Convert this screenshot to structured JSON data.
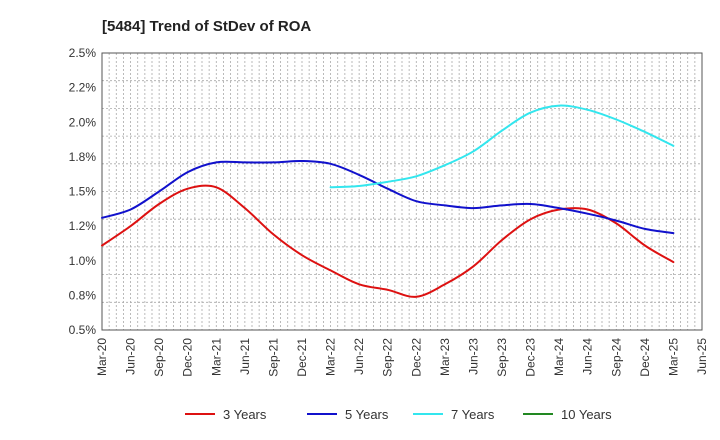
{
  "chart_data": {
    "type": "line",
    "title": "[5484]  Trend of StDev of ROA",
    "xlabel": "",
    "ylabel": "",
    "ylim": [
      0.5,
      2.5
    ],
    "y_ticks": [
      0.5,
      0.75,
      1.0,
      1.25,
      1.5,
      1.75,
      2.0,
      2.25,
      2.5
    ],
    "y_tick_labels": [
      "0.5%",
      "0.8%",
      "1.0%",
      "1.2%",
      "1.5%",
      "1.8%",
      "2.0%",
      "2.2%",
      "2.5%"
    ],
    "categories": [
      "Mar-20",
      "Jun-20",
      "Sep-20",
      "Dec-20",
      "Mar-21",
      "Jun-21",
      "Sep-21",
      "Dec-21",
      "Mar-22",
      "Jun-22",
      "Sep-22",
      "Dec-22",
      "Mar-23",
      "Jun-23",
      "Sep-23",
      "Dec-23",
      "Mar-24",
      "Jun-24",
      "Sep-24",
      "Dec-24",
      "Mar-25",
      "Jun-25"
    ],
    "grid": true,
    "legend_position": "bottom",
    "series": [
      {
        "name": "3 Years",
        "color": "#dd1111",
        "values": [
          1.11,
          1.25,
          1.41,
          1.52,
          1.53,
          1.38,
          1.19,
          1.04,
          0.93,
          0.83,
          0.79,
          0.74,
          0.83,
          0.96,
          1.15,
          1.3,
          1.37,
          1.37,
          1.27,
          1.11,
          0.99,
          null
        ]
      },
      {
        "name": "5 Years",
        "color": "#1111cc",
        "values": [
          1.31,
          1.37,
          1.5,
          1.64,
          1.71,
          1.71,
          1.71,
          1.72,
          1.7,
          1.62,
          1.52,
          1.43,
          1.4,
          1.38,
          1.4,
          1.41,
          1.38,
          1.34,
          1.29,
          1.23,
          1.2,
          null
        ]
      },
      {
        "name": "7 Years",
        "color": "#33e6ee",
        "values": [
          null,
          null,
          null,
          null,
          null,
          null,
          null,
          null,
          1.53,
          1.54,
          1.57,
          1.61,
          1.69,
          1.79,
          1.94,
          2.07,
          2.12,
          2.09,
          2.02,
          1.93,
          1.83,
          null
        ]
      },
      {
        "name": "10 Years",
        "color": "#228822",
        "values": [
          null,
          null,
          null,
          null,
          null,
          null,
          null,
          null,
          null,
          null,
          null,
          null,
          null,
          null,
          null,
          null,
          null,
          null,
          null,
          null,
          null,
          null
        ]
      }
    ]
  }
}
